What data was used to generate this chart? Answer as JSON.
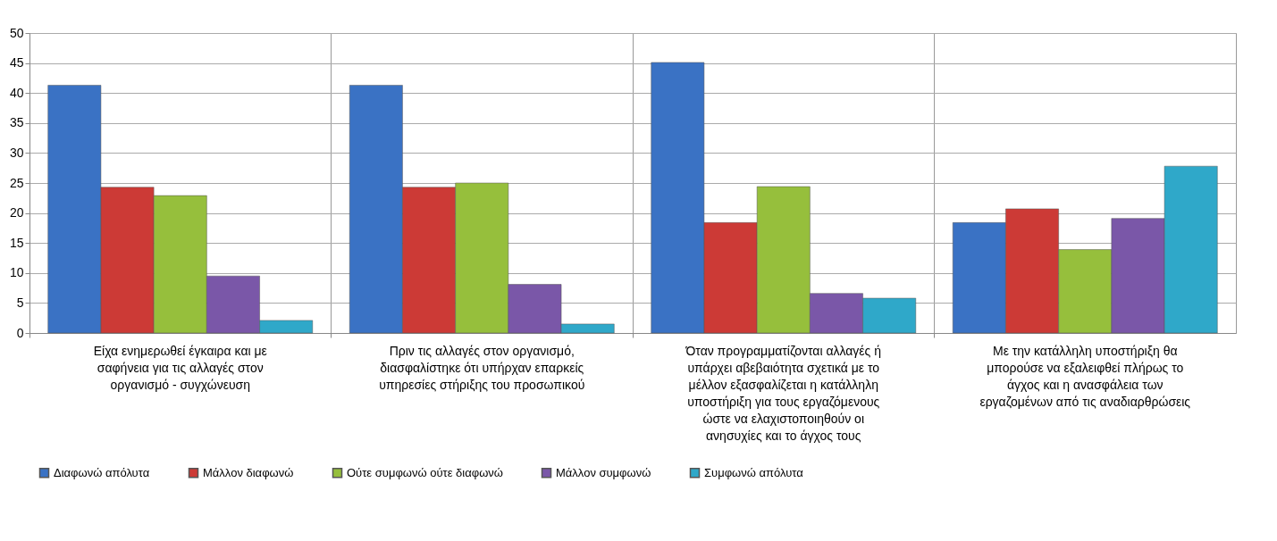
{
  "chart_data": {
    "type": "bar",
    "categories": [
      "Είχα ενημερωθεί έγκαιρα και με σαφήνεια για τις αλλαγές στον οργανισμό - συγχώνευση",
      "Πριν τις αλλαγές στον οργανισμό, διασφαλίστηκε ότι υπήρχαν επαρκείς υπηρεσίες στήριξης του προσωπικού",
      "Όταν προγραμματίζονται αλλαγές ή υπάρχει αβεβαιότητα σχετικά με το μέλλον εξασφαλίζεται η κατάλληλη υποστήριξη για τους εργαζόμενους ώστε να ελαχιστοποιηθούν οι ανησυχίες και το άγχος τους",
      "Με την κατάλληλη υποστήριξη θα μπορούσε να εξαλειφθεί πλήρως το άγχος και η ανασφάλεια των εργαζομένων από τις αναδιαρθρώσεις"
    ],
    "series": [
      {
        "name": "Διαφωνώ απόλυτα",
        "color": "#3a72c4",
        "values": [
          41.3,
          41.3,
          45.1,
          18.4
        ]
      },
      {
        "name": "Μάλλον διαφωνώ",
        "color": "#cc3a36",
        "values": [
          24.3,
          24.3,
          18.4,
          20.7
        ]
      },
      {
        "name": "Ούτε συμφωνώ ούτε διαφωνώ",
        "color": "#96bf3c",
        "values": [
          22.9,
          25.0,
          24.4,
          13.9
        ]
      },
      {
        "name": "Μάλλον συμφωνώ",
        "color": "#7a57a8",
        "values": [
          9.5,
          8.1,
          6.6,
          19.1
        ]
      },
      {
        "name": "Συμφωνώ απόλυτα",
        "color": "#2fa8c9",
        "values": [
          2.1,
          1.5,
          5.8,
          27.8
        ]
      }
    ],
    "ylim": [
      0,
      50
    ],
    "yticks": [
      0,
      5,
      10,
      15,
      20,
      25,
      30,
      35,
      40,
      45,
      50
    ],
    "grid": true,
    "legend": "bottom"
  }
}
